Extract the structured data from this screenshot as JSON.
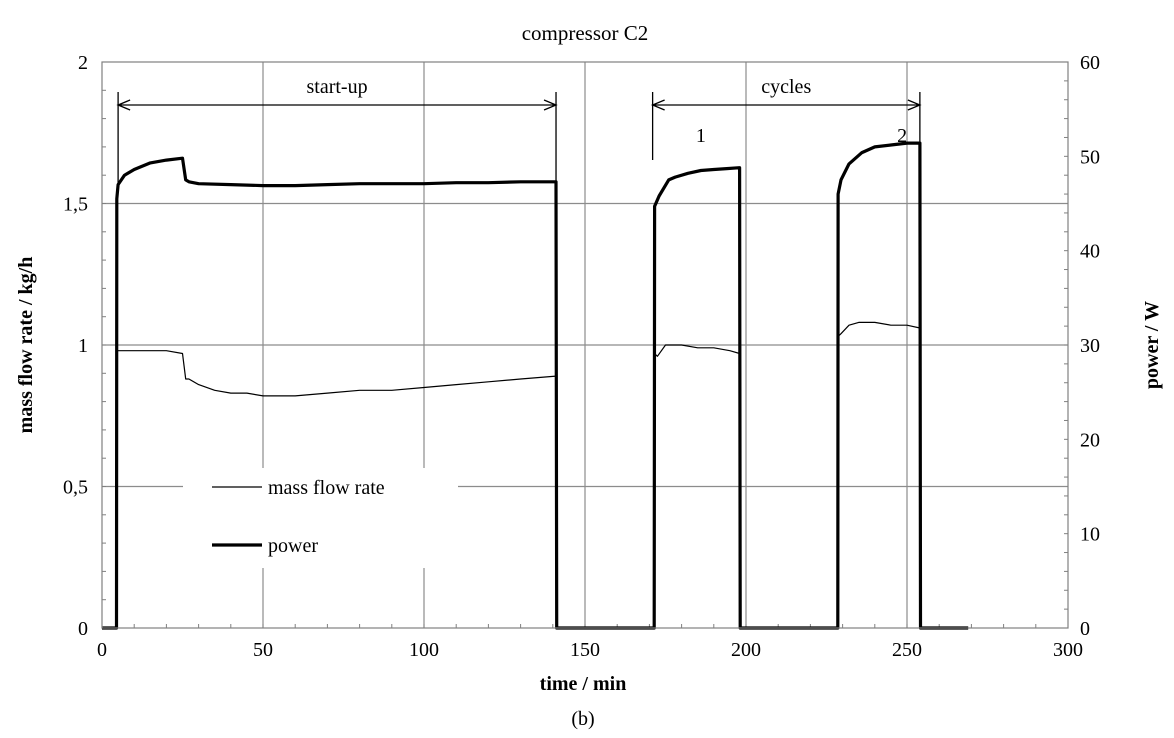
{
  "chart_data": {
    "type": "line",
    "title": "compressor C2",
    "caption": "(b)",
    "xlabel": "time / min",
    "ylabel_left": "mass flow rate / kg/h",
    "ylabel_right": "power / W",
    "xlim": [
      0,
      300
    ],
    "ylim_left": [
      0,
      2
    ],
    "ylim_right": [
      0,
      60
    ],
    "x_ticks": [
      0,
      50,
      100,
      150,
      200,
      250,
      300
    ],
    "y_left_ticks": [
      "0",
      "0,5",
      "1",
      "1,5",
      "2"
    ],
    "y_right_ticks": [
      "0",
      "10",
      "20",
      "30",
      "40",
      "50",
      "60"
    ],
    "grid": true,
    "legend": {
      "position": "lower-left",
      "entries": [
        "mass flow rate",
        "power"
      ]
    },
    "annotations": {
      "startup": {
        "label": "start-up",
        "x_from": 5,
        "x_to": 141
      },
      "cycles": {
        "label": "cycles",
        "x_from": 171,
        "x_to": 254
      },
      "cycle_1": "1",
      "cycle_2": "2"
    },
    "series": [
      {
        "name": "mass flow rate",
        "axis": "left",
        "line_width": "thin",
        "x": [
          0,
          4.5,
          4.6,
          5,
          10,
          15,
          20,
          25,
          26,
          27,
          30,
          35,
          40,
          45,
          50,
          55,
          60,
          70,
          80,
          90,
          100,
          110,
          120,
          130,
          141,
          141.2,
          171.5,
          171.6,
          172.5,
          175,
          180,
          185,
          190,
          195,
          198,
          198.2,
          228.5,
          228.6,
          229.5,
          232,
          235,
          240,
          245,
          250,
          254,
          254.2,
          269
        ],
        "y": [
          0,
          0,
          0.98,
          0.98,
          0.98,
          0.98,
          0.98,
          0.97,
          0.88,
          0.88,
          0.86,
          0.84,
          0.83,
          0.83,
          0.82,
          0.82,
          0.82,
          0.83,
          0.84,
          0.84,
          0.85,
          0.86,
          0.87,
          0.88,
          0.89,
          0,
          0,
          0.97,
          0.96,
          1.0,
          1.0,
          0.99,
          0.99,
          0.98,
          0.97,
          0,
          0,
          1.03,
          1.04,
          1.07,
          1.08,
          1.08,
          1.07,
          1.07,
          1.06,
          0,
          0
        ]
      },
      {
        "name": "power",
        "axis": "right",
        "line_width": "thick",
        "x": [
          0,
          4.5,
          4.6,
          5,
          7,
          10,
          15,
          20,
          25,
          26,
          27,
          30,
          40,
          50,
          60,
          70,
          80,
          90,
          100,
          110,
          120,
          130,
          141,
          141.2,
          171.5,
          171.6,
          173,
          176,
          178,
          182,
          186,
          190,
          194,
          198,
          198.2,
          228.5,
          228.6,
          229.5,
          232,
          236,
          240,
          245,
          250,
          254,
          254.2,
          269
        ],
        "y": [
          0,
          0,
          45.5,
          47,
          48,
          48.6,
          49.3,
          49.6,
          49.8,
          47.5,
          47.3,
          47.1,
          47,
          46.9,
          46.9,
          47,
          47.1,
          47.1,
          47.1,
          47.2,
          47.2,
          47.3,
          47.3,
          0,
          0,
          44.7,
          45.8,
          47.5,
          47.8,
          48.2,
          48.5,
          48.6,
          48.7,
          48.8,
          0,
          0,
          46,
          47.5,
          49.2,
          50.4,
          51,
          51.2,
          51.4,
          51.4,
          0,
          0
        ]
      }
    ]
  }
}
